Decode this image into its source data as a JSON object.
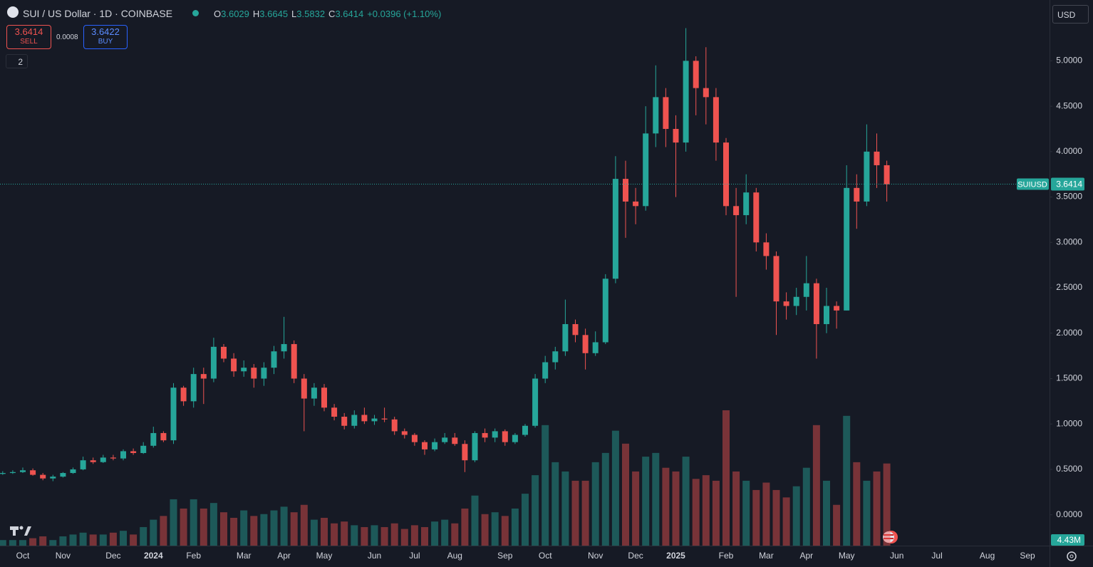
{
  "header": {
    "symbol": "SUI / US Dollar · 1D · COINBASE",
    "ohlc": [
      {
        "key": "O",
        "value": "3.6029"
      },
      {
        "key": "H",
        "value": "3.6645"
      },
      {
        "key": "L",
        "value": "3.5832"
      },
      {
        "key": "C",
        "value": "3.6414"
      }
    ],
    "change": "+0.0396 (+1.10%)",
    "sell": {
      "price": "3.6414",
      "label": "SELL"
    },
    "spread": "0.0008",
    "buy": {
      "price": "3.6422",
      "label": "BUY"
    },
    "indicators": "2",
    "currency": "USD"
  },
  "chart_data": {
    "type": "candlestick",
    "up_color": "#26a69a",
    "down_color": "#ef5350",
    "categories": [
      null,
      null,
      "Oct",
      null,
      null,
      null,
      "Nov",
      null,
      null,
      null,
      null,
      "Dec",
      null,
      null,
      null,
      "2024",
      null,
      null,
      null,
      "Feb",
      null,
      null,
      null,
      null,
      "Mar",
      null,
      null,
      null,
      "Apr",
      null,
      null,
      null,
      "May",
      null,
      null,
      null,
      null,
      "Jun",
      null,
      null,
      null,
      "Jul",
      null,
      null,
      null,
      "Aug",
      null,
      null,
      null,
      null,
      "Sep",
      null,
      null,
      null,
      "Oct",
      null,
      null,
      null,
      null,
      "Nov",
      null,
      null,
      null,
      "Dec",
      null,
      null,
      null,
      "2025",
      null,
      null,
      null,
      null,
      "Feb",
      null,
      null,
      null,
      "Mar",
      null,
      null,
      null,
      "Apr",
      null,
      null,
      null,
      "May",
      null,
      null,
      null,
      null,
      "Jun",
      null,
      null,
      null,
      "Jul",
      null,
      null,
      null,
      null,
      "Aug",
      null,
      null,
      null,
      "Sep",
      null
    ],
    "open": [
      0.45,
      0.46,
      0.47,
      0.49,
      0.44,
      0.4,
      0.42,
      0.46,
      0.5,
      0.6,
      0.58,
      0.63,
      0.62,
      0.7,
      0.68,
      0.76,
      0.9,
      0.82,
      1.4,
      1.25,
      1.55,
      1.5,
      1.85,
      1.72,
      1.58,
      1.62,
      1.5,
      1.62,
      1.8,
      1.88,
      1.5,
      1.28,
      1.4,
      1.18,
      1.08,
      0.98,
      1.1,
      1.03,
      1.06,
      1.05,
      0.92,
      0.88,
      0.8,
      0.72,
      0.8,
      0.85,
      0.78,
      0.6,
      0.9,
      0.85,
      0.92,
      0.8,
      0.88,
      0.98,
      1.5,
      1.68,
      1.8,
      2.1,
      1.98,
      1.78,
      1.9,
      2.6,
      3.7,
      3.45,
      3.4,
      4.2,
      4.6,
      4.25,
      4.1,
      5.0,
      4.7,
      4.6,
      4.1,
      3.4,
      3.3,
      3.55,
      3.0,
      2.85,
      2.35,
      2.3,
      2.4,
      2.55,
      2.1,
      2.3,
      2.25,
      3.6,
      3.45,
      4.0,
      3.85,
      null,
      null,
      null,
      null,
      null,
      null,
      null,
      null,
      null,
      null,
      null,
      null,
      null,
      null,
      null
    ],
    "high": [
      0.48,
      0.49,
      0.52,
      0.51,
      0.46,
      0.44,
      0.47,
      0.52,
      0.64,
      0.63,
      0.66,
      0.66,
      0.72,
      0.73,
      0.8,
      0.97,
      0.92,
      1.45,
      1.42,
      1.62,
      1.62,
      1.95,
      1.88,
      1.78,
      1.7,
      1.66,
      1.68,
      1.86,
      2.18,
      1.92,
      1.55,
      1.45,
      1.44,
      1.22,
      1.12,
      1.15,
      1.18,
      1.1,
      1.18,
      1.08,
      0.95,
      0.9,
      0.82,
      0.84,
      0.9,
      0.9,
      0.82,
      0.92,
      0.95,
      0.95,
      0.94,
      0.9,
      1.0,
      1.55,
      1.75,
      1.85,
      2.37,
      2.15,
      2.05,
      2.02,
      2.65,
      3.95,
      3.9,
      3.6,
      4.5,
      4.95,
      4.7,
      4.4,
      5.36,
      5.05,
      5.15,
      4.7,
      4.15,
      3.6,
      3.75,
      3.6,
      3.1,
      2.9,
      2.45,
      2.5,
      2.85,
      2.6,
      2.5,
      2.35,
      3.85,
      3.75,
      4.3,
      4.2,
      3.9,
      null,
      null,
      null,
      null,
      null,
      null,
      null,
      null,
      null,
      null,
      null,
      null,
      null,
      null,
      null
    ],
    "low": [
      0.44,
      0.45,
      0.46,
      0.43,
      0.38,
      0.37,
      0.41,
      0.45,
      0.49,
      0.56,
      0.57,
      0.6,
      0.6,
      0.66,
      0.67,
      0.74,
      0.8,
      0.78,
      1.2,
      1.18,
      1.22,
      1.46,
      1.68,
      1.52,
      1.52,
      1.4,
      1.42,
      1.55,
      1.72,
      1.45,
      0.92,
      1.2,
      1.14,
      1.04,
      0.94,
      0.95,
      1.0,
      0.99,
      1.02,
      0.88,
      0.84,
      0.76,
      0.66,
      0.7,
      0.78,
      0.76,
      0.47,
      0.58,
      0.8,
      0.8,
      0.76,
      0.78,
      0.86,
      0.96,
      1.45,
      1.6,
      1.75,
      1.9,
      1.6,
      1.75,
      1.88,
      2.55,
      3.05,
      3.2,
      3.35,
      4.05,
      4.05,
      3.5,
      4.0,
      4.4,
      4.3,
      3.9,
      3.3,
      2.4,
      3.2,
      2.9,
      2.7,
      1.98,
      2.15,
      2.2,
      2.25,
      1.72,
      2.0,
      2.05,
      2.25,
      3.15,
      3.4,
      3.6,
      3.45,
      null,
      null,
      null,
      null,
      null,
      null,
      null,
      null,
      null,
      null,
      null,
      null,
      null,
      null,
      null
    ],
    "close": [
      0.46,
      0.47,
      0.49,
      0.44,
      0.4,
      0.42,
      0.46,
      0.5,
      0.6,
      0.58,
      0.63,
      0.62,
      0.7,
      0.68,
      0.76,
      0.9,
      0.82,
      1.4,
      1.25,
      1.55,
      1.5,
      1.85,
      1.72,
      1.58,
      1.62,
      1.5,
      1.62,
      1.8,
      1.88,
      1.5,
      1.28,
      1.4,
      1.18,
      1.08,
      0.98,
      1.1,
      1.03,
      1.06,
      1.05,
      0.92,
      0.88,
      0.8,
      0.72,
      0.8,
      0.85,
      0.78,
      0.6,
      0.9,
      0.85,
      0.92,
      0.8,
      0.88,
      0.98,
      1.5,
      1.68,
      1.8,
      2.1,
      1.98,
      1.78,
      1.9,
      2.6,
      3.7,
      3.45,
      3.4,
      4.2,
      4.6,
      4.25,
      4.1,
      5.0,
      4.7,
      4.6,
      4.1,
      3.4,
      3.3,
      3.55,
      3.0,
      2.85,
      2.35,
      2.3,
      2.4,
      2.55,
      2.1,
      2.3,
      2.25,
      3.6,
      3.45,
      4.0,
      3.85,
      3.64,
      null,
      null,
      null,
      null,
      null,
      null,
      null,
      null,
      null,
      null,
      null,
      null,
      null,
      null,
      null
    ],
    "volume": [
      0.3,
      0.3,
      0.3,
      0.4,
      0.5,
      0.3,
      0.5,
      0.6,
      0.7,
      0.6,
      0.6,
      0.7,
      0.8,
      0.6,
      1.0,
      1.4,
      1.6,
      2.5,
      2.0,
      2.5,
      2.0,
      2.3,
      1.8,
      1.5,
      1.9,
      1.6,
      1.7,
      1.9,
      2.1,
      1.8,
      2.2,
      1.4,
      1.5,
      1.2,
      1.3,
      1.1,
      1.0,
      1.1,
      1.0,
      1.2,
      0.9,
      1.1,
      1.0,
      1.3,
      1.4,
      1.2,
      2.0,
      2.7,
      1.7,
      1.8,
      1.6,
      2.0,
      2.8,
      3.8,
      6.5,
      4.5,
      4.0,
      3.5,
      3.5,
      4.5,
      5.0,
      6.2,
      5.5,
      4.0,
      4.8,
      5.0,
      4.2,
      4.0,
      4.8,
      3.6,
      3.8,
      3.5,
      7.3,
      4.0,
      3.5,
      3.0,
      3.4,
      3.0,
      2.6,
      3.2,
      4.2,
      6.5,
      3.5,
      2.2,
      7.0,
      4.5,
      3.5,
      4.0,
      4.43,
      null,
      null,
      null,
      null,
      null,
      null,
      null,
      null,
      null,
      null,
      null,
      null,
      null,
      null,
      null
    ],
    "volume_label": "4.43M",
    "last_price": 3.6414,
    "symbol_tag": "SUIUSD",
    "ylim": [
      -0.34,
      5.67
    ],
    "yticks": [
      {
        "value": 0,
        "label": "0.0000"
      },
      {
        "value": 0.5,
        "label": "0.5000"
      },
      {
        "value": 1,
        "label": "1.0000"
      },
      {
        "value": 1.5,
        "label": "1.5000"
      },
      {
        "value": 2,
        "label": "2.0000"
      },
      {
        "value": 2.5,
        "label": "2.5000"
      },
      {
        "value": 3,
        "label": "3.0000"
      },
      {
        "value": 3.5,
        "label": "3.5000"
      },
      {
        "value": 4,
        "label": "4.0000"
      },
      {
        "value": 4.5,
        "label": "4.5000"
      },
      {
        "value": 5,
        "label": "5.0000"
      }
    ]
  }
}
